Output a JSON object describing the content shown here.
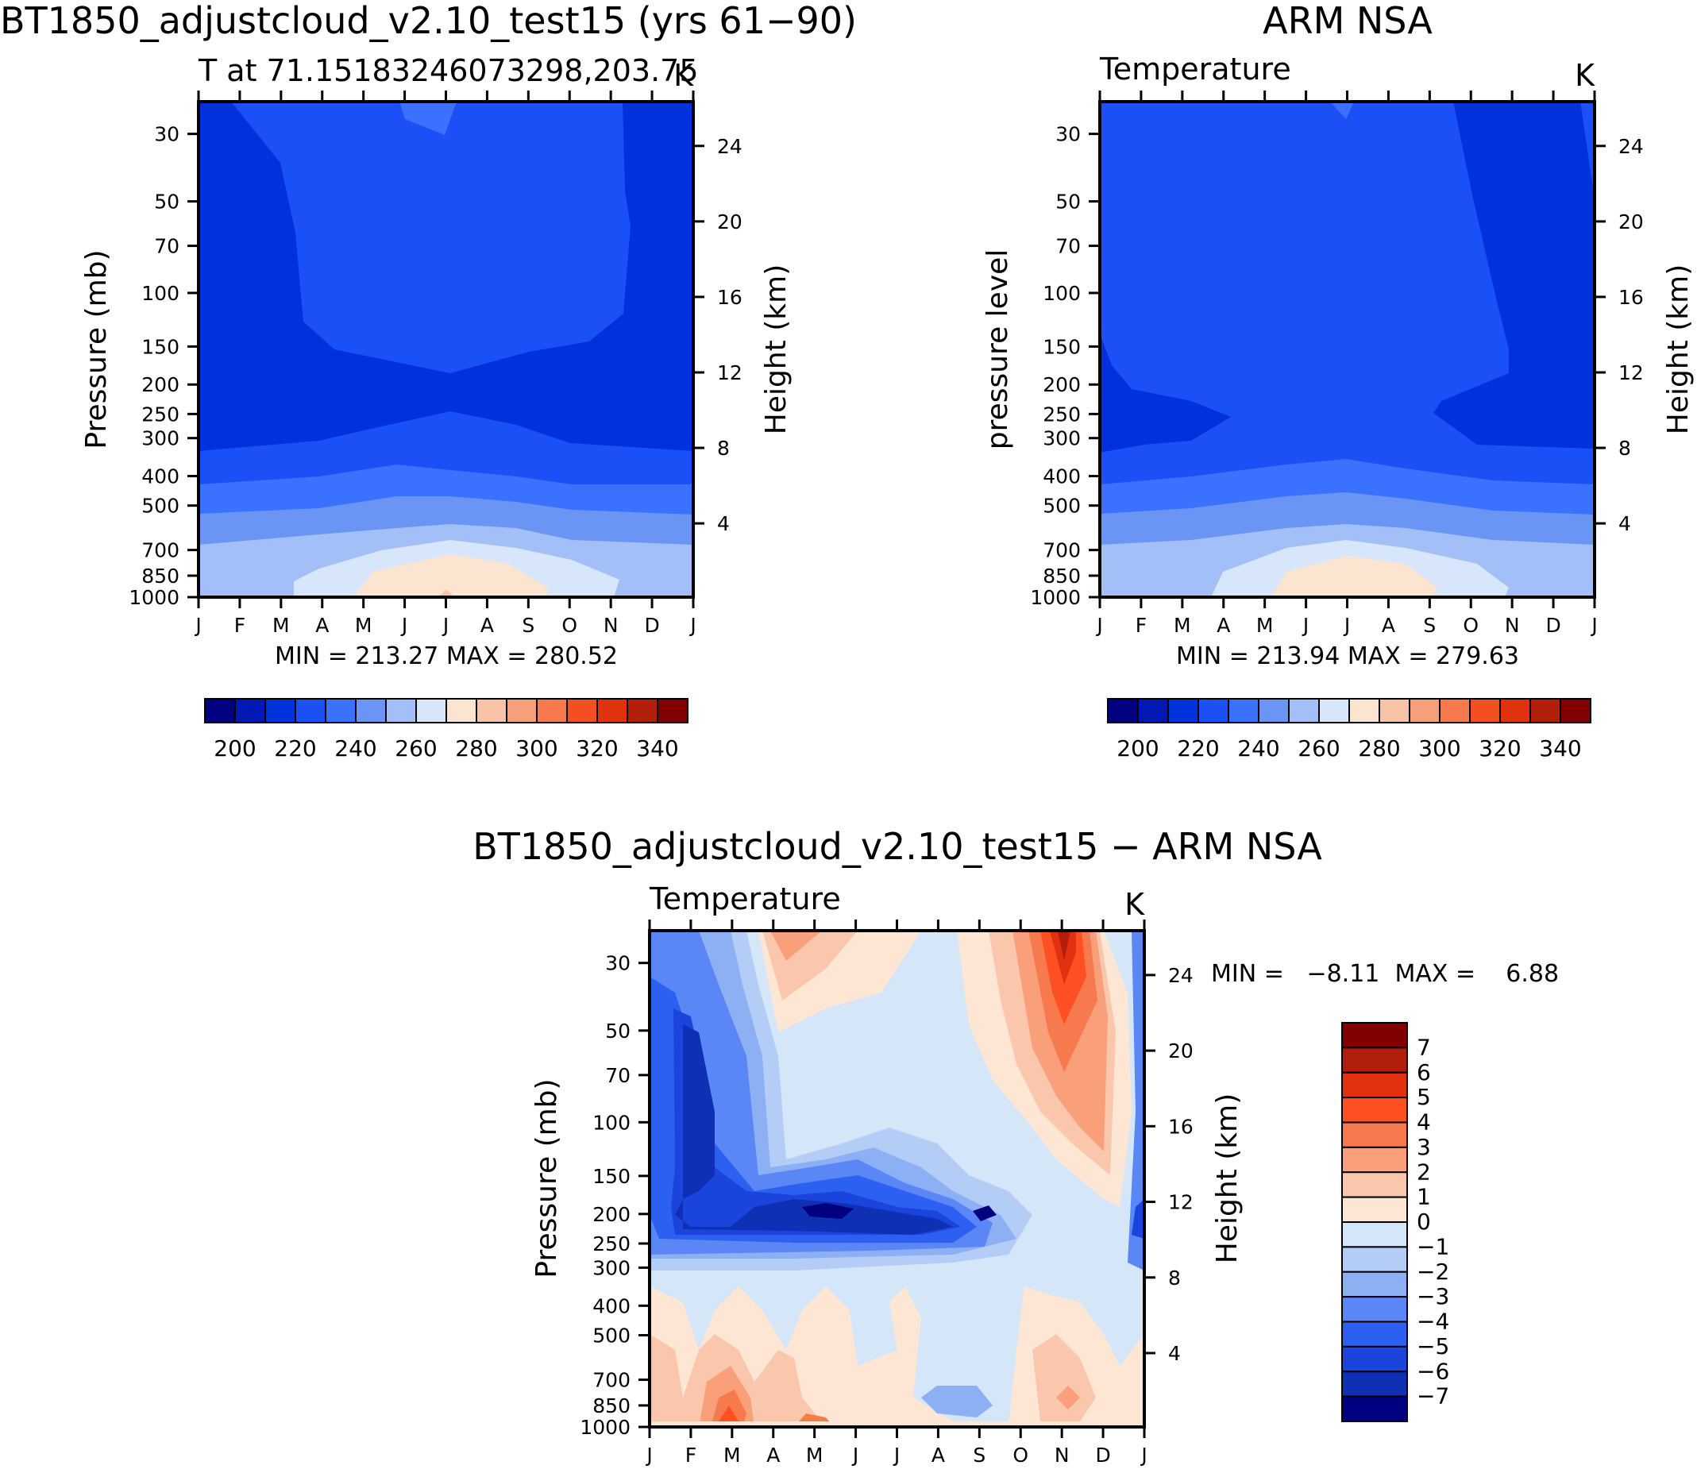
{
  "figure": {
    "left_title": "BT1850_adjustcloud_v2.10_test15 (yrs 61−90)",
    "right_title": "ARM NSA",
    "bottom_title": "BT1850_adjustcloud_v2.10_test15 − ARM NSA"
  },
  "chart_data": [
    {
      "type": "contour",
      "id": "model",
      "subtitle": "T at 71.15183246073298,203.75",
      "units": "K",
      "ylabel": "Pressure (mb)",
      "ylabel_right": "Height (km)",
      "x_ticks": [
        "J",
        "F",
        "M",
        "A",
        "M",
        "J",
        "J",
        "A",
        "S",
        "O",
        "N",
        "D",
        "J"
      ],
      "pressure_levels": [
        "30",
        "50",
        "70",
        "100",
        "150",
        "200",
        "250",
        "300",
        "400",
        "500",
        "700",
        "850",
        "1000"
      ],
      "height_ticks": [
        "24",
        "20",
        "16",
        "12",
        "8",
        "4"
      ],
      "stats_text": "MIN = 213.27 MAX = 280.52",
      "min": 213.27,
      "max": 280.52,
      "contour_levels_K": [
        200,
        210,
        220,
        230,
        240,
        250,
        260,
        270,
        280,
        290,
        300,
        310,
        320,
        330,
        340
      ]
    },
    {
      "type": "contour",
      "id": "obs",
      "subtitle": "Temperature",
      "units": "K",
      "ylabel": "pressure level",
      "ylabel_right": "Height (km)",
      "x_ticks": [
        "J",
        "F",
        "M",
        "A",
        "M",
        "J",
        "J",
        "A",
        "S",
        "O",
        "N",
        "D",
        "J"
      ],
      "pressure_levels": [
        "30",
        "50",
        "70",
        "100",
        "150",
        "200",
        "250",
        "300",
        "400",
        "500",
        "700",
        "850",
        "1000"
      ],
      "height_ticks": [
        "24",
        "20",
        "16",
        "12",
        "8",
        "4"
      ],
      "stats_text": "MIN = 213.94 MAX = 279.63",
      "min": 213.94,
      "max": 279.63,
      "contour_levels_K": [
        200,
        210,
        220,
        230,
        240,
        250,
        260,
        270,
        280,
        290,
        300,
        310,
        320,
        330,
        340
      ]
    },
    {
      "type": "contour",
      "id": "difference",
      "subtitle": "Temperature",
      "units": "K",
      "ylabel": "Pressure (mb)",
      "ylabel_right": "Height (km)",
      "x_ticks": [
        "J",
        "F",
        "M",
        "A",
        "M",
        "J",
        "J",
        "A",
        "S",
        "O",
        "N",
        "D",
        "J"
      ],
      "pressure_levels": [
        "30",
        "50",
        "70",
        "100",
        "150",
        "200",
        "250",
        "300",
        "400",
        "500",
        "700",
        "850",
        "1000"
      ],
      "height_ticks": [
        "24",
        "20",
        "16",
        "12",
        "8",
        "4"
      ],
      "stats_text": "MIN =   −8.11  MAX =    6.88",
      "min": -8.11,
      "max": 6.88,
      "contour_levels_K": [
        -7,
        -6,
        -5,
        -4,
        -3,
        -2,
        -1,
        0,
        1,
        2,
        3,
        4,
        5,
        6,
        7
      ]
    }
  ],
  "colorbars": {
    "temperature": {
      "labels": [
        "200",
        "220",
        "240",
        "260",
        "280",
        "300",
        "320",
        "340"
      ],
      "colors": [
        "#000080",
        "#0019b4",
        "#0032dc",
        "#1a50f5",
        "#3a72ff",
        "#6b95f5",
        "#a3bff8",
        "#d7e6fa",
        "#fce5d0",
        "#f9c3a8",
        "#f6a07b",
        "#f77a4e",
        "#f44f23",
        "#e2310f",
        "#b21e0c",
        "#800000"
      ]
    },
    "difference": {
      "labels": [
        "7",
        "6",
        "5",
        "4",
        "3",
        "2",
        "1",
        "0",
        "−1",
        "−2",
        "−3",
        "−4",
        "−5",
        "−6",
        "−7"
      ],
      "colors": [
        "#800000",
        "#b21e0c",
        "#e2310f",
        "#ff5023",
        "#f77a4e",
        "#f9a07b",
        "#fac7ad",
        "#fde7d4",
        "#d6e6f9",
        "#b4cdf7",
        "#8db0f5",
        "#5a87f5",
        "#2c60f0",
        "#1a44dc",
        "#0f2fb4",
        "#000080"
      ]
    }
  }
}
